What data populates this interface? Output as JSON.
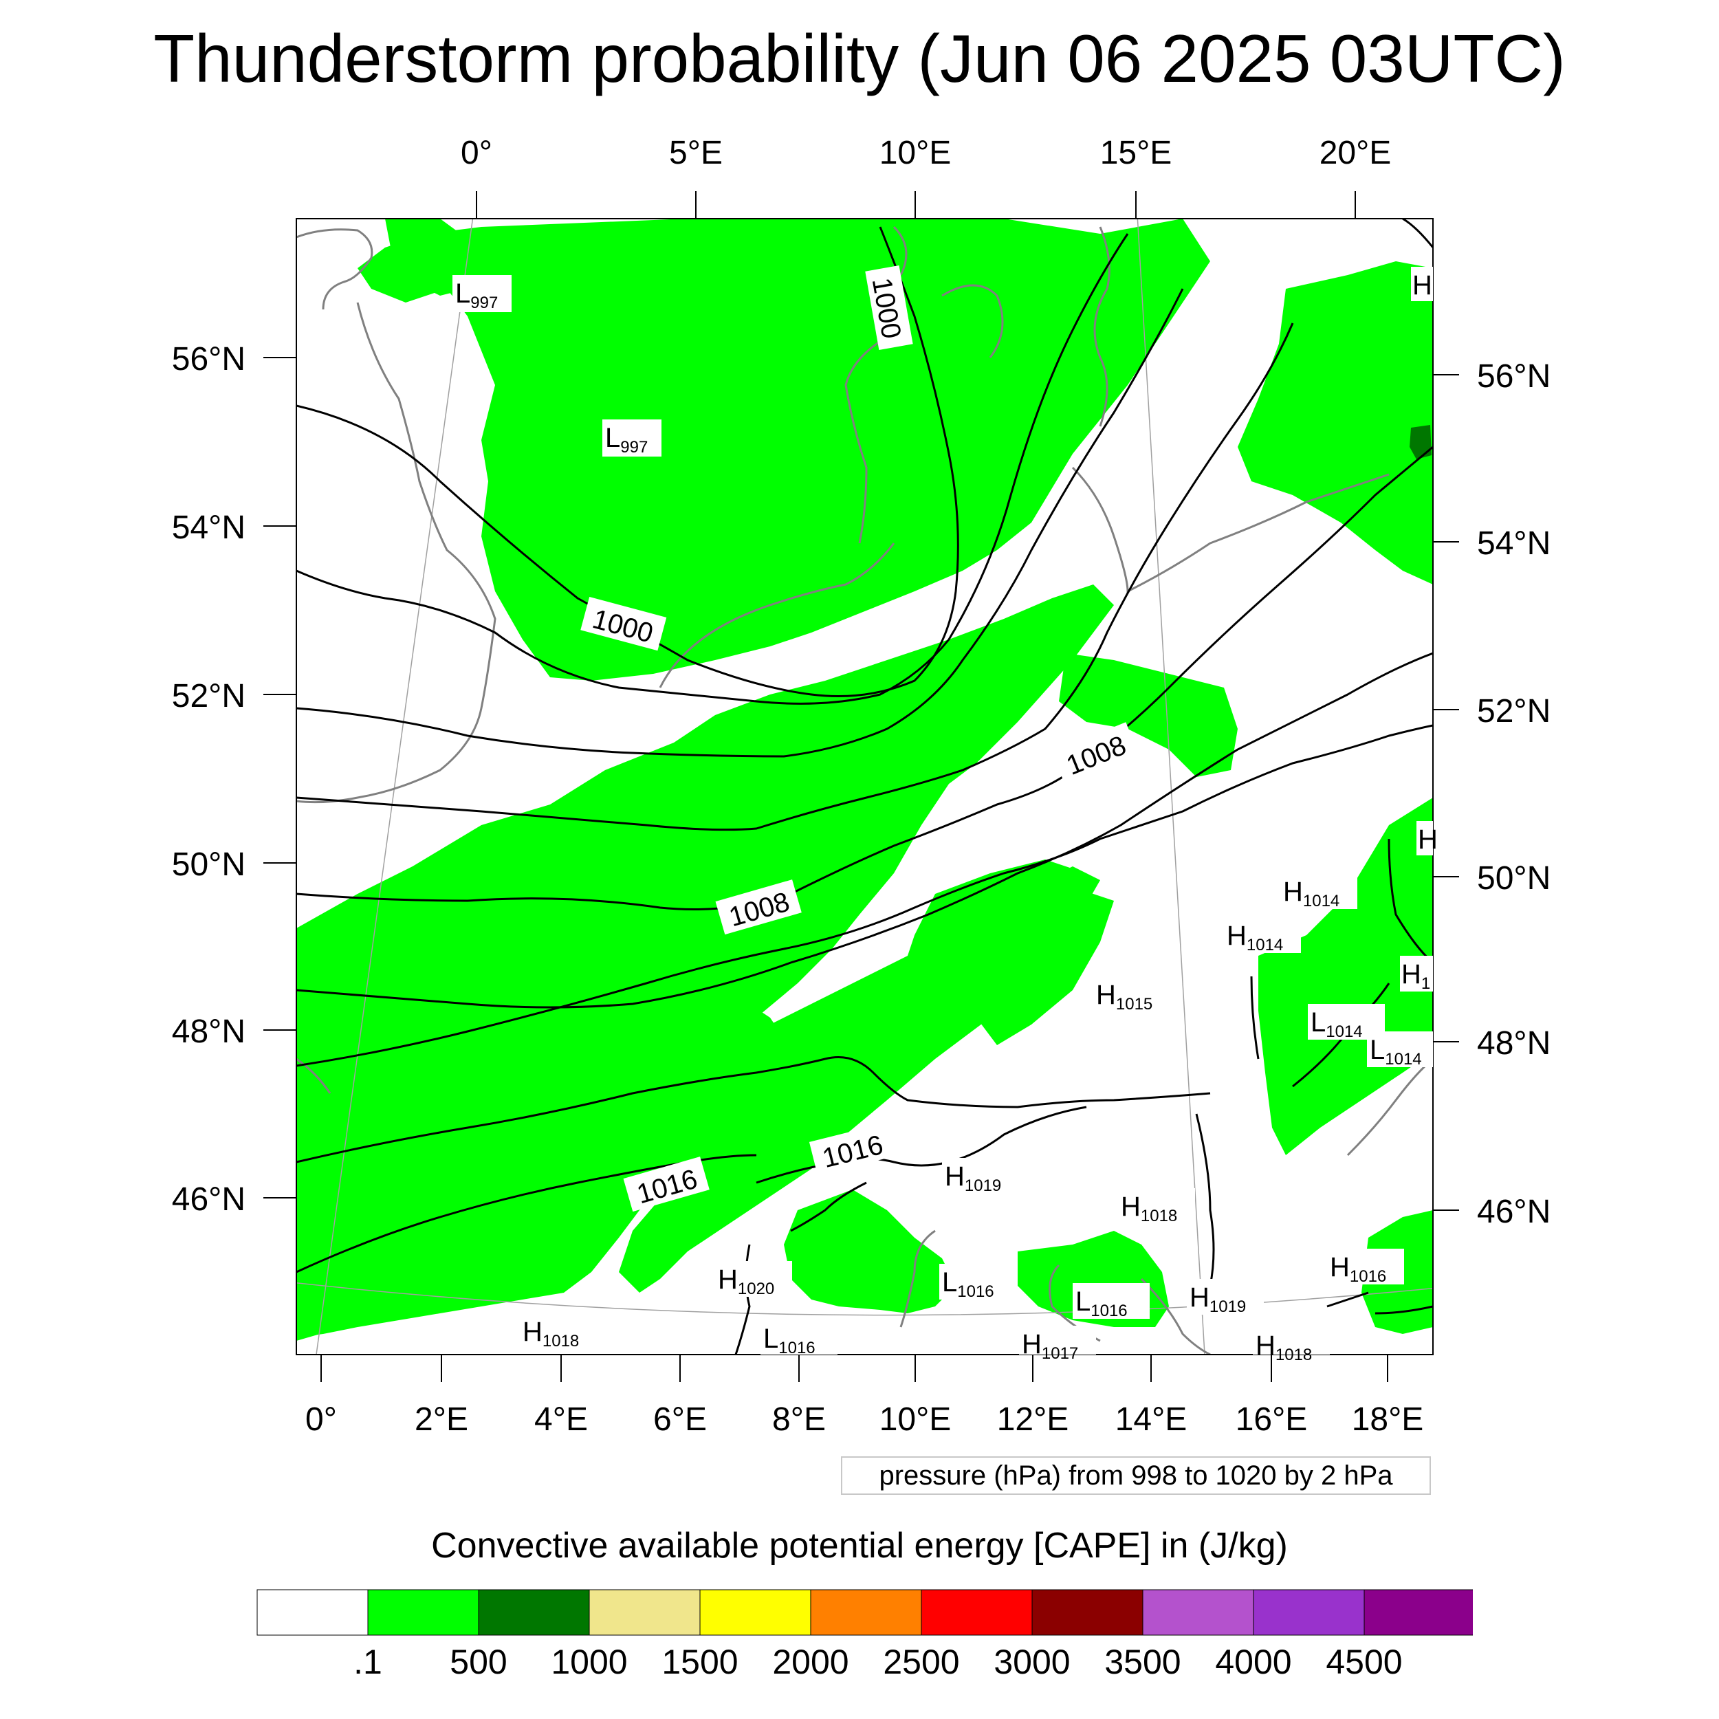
{
  "title": "Thunderstorm probability (Jun 06 2025 03UTC)",
  "map": {
    "top_lon_labels": [
      "0°",
      "5°E",
      "10°E",
      "15°E",
      "20°E"
    ],
    "bottom_lon_labels": [
      "0°",
      "2°E",
      "4°E",
      "6°E",
      "8°E",
      "10°E",
      "12°E",
      "14°E",
      "16°E",
      "18°E"
    ],
    "left_lat_labels": [
      "56°N",
      "54°N",
      "52°N",
      "50°N",
      "48°N",
      "46°N"
    ],
    "right_lat_labels": [
      "56°N",
      "54°N",
      "52°N",
      "50°N",
      "48°N",
      "46°N"
    ],
    "isobar_labels": [
      "1000",
      "1000",
      "1008",
      "1008",
      "1016",
      "1016"
    ],
    "pressure_centers": [
      {
        "type": "L",
        "value": "997"
      },
      {
        "type": "L",
        "value": "997"
      },
      {
        "type": "H",
        "value": ""
      },
      {
        "type": "H",
        "value": ""
      },
      {
        "type": "H",
        "value": "1014"
      },
      {
        "type": "H",
        "value": "1014"
      },
      {
        "type": "H",
        "value": "1"
      },
      {
        "type": "H",
        "value": "1015"
      },
      {
        "type": "L",
        "value": "1014"
      },
      {
        "type": "L",
        "value": "1014"
      },
      {
        "type": "H",
        "value": "1019"
      },
      {
        "type": "H",
        "value": "1018"
      },
      {
        "type": "H",
        "value": "1016"
      },
      {
        "type": "H",
        "value": "1020"
      },
      {
        "type": "L",
        "value": "1016"
      },
      {
        "type": "L",
        "value": "1016"
      },
      {
        "type": "H",
        "value": "1019"
      },
      {
        "type": "H",
        "value": "1018"
      },
      {
        "type": "L",
        "value": "1016"
      },
      {
        "type": "H",
        "value": "1017"
      },
      {
        "type": "H",
        "value": "1018"
      }
    ],
    "field_colors": {
      "cape_low": "#00ff00",
      "cape_high": "#007700",
      "isobar": "#000000",
      "coastline": "#808080",
      "graticule": "#a0a0a0"
    }
  },
  "contour_info": "pressure (hPa) from 998 to 1020 by 2 hPa",
  "colorbar": {
    "title": "Convective available potential energy [CAPE] in (J/kg)",
    "colors": [
      "#ffffff",
      "#00ff00",
      "#007700",
      "#f0e68c",
      "#ffff00",
      "#ff8000",
      "#ff0000",
      "#8b0000",
      "#b452cd",
      "#9932cc",
      "#8b008b"
    ],
    "labels": [
      ".1",
      "500",
      "1000",
      "1500",
      "2000",
      "2500",
      "3000",
      "3500",
      "4000",
      "4500"
    ]
  }
}
